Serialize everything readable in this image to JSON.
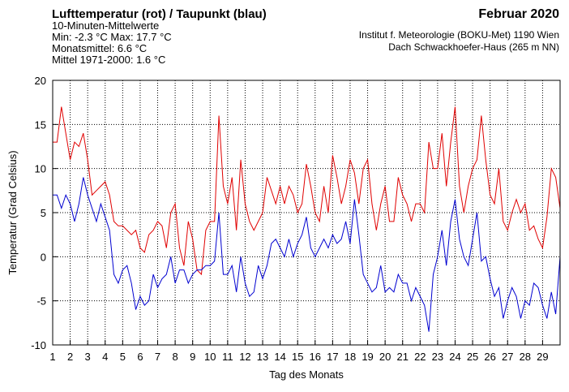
{
  "chart_data": {
    "type": "line",
    "title": "Lufttemperatur (rot) / Taupunkt (blau)",
    "subtitle": [
      "10-Minuten-Mittelwerte",
      "Min:  -2.3 °C   Max:  17.7 °C",
      "Monatsmittel:   6.6 °C",
      "Mittel 1971-2000:   1.6 °C"
    ],
    "title_right": "Februar 2020",
    "source": [
      "Institut f. Meteorologie (BOKU-Met) 1190 Wien",
      "Dach Schwackhoefer-Haus (265 m NN)"
    ],
    "xlabel": "Tag des Monats",
    "ylabel": "Temperatur (Grad Celsius)",
    "x": [
      1,
      1.25,
      1.5,
      1.75,
      2,
      2.25,
      2.5,
      2.75,
      3,
      3.25,
      3.5,
      3.75,
      4,
      4.25,
      4.5,
      4.75,
      5,
      5.25,
      5.5,
      5.75,
      6,
      6.25,
      6.5,
      6.75,
      7,
      7.25,
      7.5,
      7.75,
      8,
      8.25,
      8.5,
      8.75,
      9,
      9.25,
      9.5,
      9.75,
      10,
      10.25,
      10.5,
      10.75,
      11,
      11.25,
      11.5,
      11.75,
      12,
      12.25,
      12.5,
      12.75,
      13,
      13.25,
      13.5,
      13.75,
      14,
      14.25,
      14.5,
      14.75,
      15,
      15.25,
      15.5,
      15.75,
      16,
      16.25,
      16.5,
      16.75,
      17,
      17.25,
      17.5,
      17.75,
      18,
      18.25,
      18.5,
      18.75,
      19,
      19.25,
      19.5,
      19.75,
      20,
      20.25,
      20.5,
      20.75,
      21,
      21.25,
      21.5,
      21.75,
      22,
      22.25,
      22.5,
      22.75,
      23,
      23.25,
      23.5,
      23.75,
      24,
      24.25,
      24.5,
      24.75,
      25,
      25.25,
      25.5,
      25.75,
      26,
      26.25,
      26.5,
      26.75,
      27,
      27.25,
      27.5,
      27.75,
      28,
      28.25,
      28.5,
      28.75,
      29,
      29.25,
      29.5,
      29.75,
      30
    ],
    "series": [
      {
        "name": "Lufttemperatur",
        "color": "#e00000",
        "values": [
          13,
          13,
          17,
          14,
          11,
          13,
          12.5,
          14,
          11,
          7,
          7.5,
          8,
          8.5,
          7,
          4,
          3.5,
          3.5,
          3,
          2.5,
          3,
          1,
          0.5,
          2.5,
          3,
          4,
          3.5,
          1,
          5,
          6,
          1,
          -1,
          4,
          2,
          -1.5,
          -2,
          3,
          4,
          4,
          16,
          8,
          6,
          9,
          3,
          11,
          6,
          4,
          3,
          4,
          5,
          9,
          7.5,
          6,
          8,
          6,
          8,
          7,
          5,
          6,
          10.5,
          8,
          5,
          4,
          8,
          5,
          11.5,
          9,
          6,
          8,
          11,
          9.5,
          6,
          10,
          11,
          6,
          3,
          6,
          8,
          4,
          4,
          9,
          7,
          6,
          4,
          6,
          6,
          5,
          13,
          10,
          10,
          14,
          8,
          13,
          17,
          8,
          5,
          8,
          10,
          11,
          16,
          11,
          7,
          6,
          10,
          4,
          3,
          5,
          6.5,
          5,
          6,
          3,
          3.5,
          2,
          1,
          4.5,
          10,
          9,
          5.5
        ]
      },
      {
        "name": "Taupunkt",
        "color": "#0000d0",
        "values": [
          7,
          7,
          5.5,
          7,
          6,
          4,
          6,
          9,
          7,
          5.5,
          4,
          6,
          4.5,
          3,
          -2,
          -3,
          -1.5,
          -1,
          -3,
          -6,
          -4.5,
          -5.5,
          -5,
          -2,
          -3.5,
          -2.5,
          -2,
          0,
          -3,
          -1.5,
          -1.5,
          -3,
          -2,
          -1.5,
          -1.5,
          -1,
          -1,
          -0.5,
          5,
          -2,
          -2,
          -1,
          -4,
          0,
          -3,
          -4.5,
          -4,
          -1,
          -2.5,
          -1,
          1.5,
          2,
          1,
          0,
          2,
          0,
          1.5,
          2.5,
          4.5,
          1,
          0,
          1,
          2,
          1,
          2.5,
          1.5,
          2,
          4,
          1.5,
          6.5,
          2.5,
          -2,
          -3,
          -4,
          -3.5,
          -1,
          -4,
          -3.5,
          -4,
          -2,
          -3,
          -3,
          -5,
          -3.5,
          -4.5,
          -5.5,
          -8.5,
          -2,
          0,
          3,
          -1,
          4,
          6.5,
          2,
          0,
          -1,
          2,
          5,
          -0.5,
          0,
          -2.5,
          -4.5,
          -3.5,
          -7,
          -5,
          -3.5,
          -4.5,
          -7,
          -5,
          -5.5,
          -3,
          -3.5,
          -5.5,
          -7,
          -4,
          -6.5,
          0
        ]
      }
    ],
    "xlim": [
      1,
      30
    ],
    "xticks": [
      1,
      2,
      3,
      4,
      5,
      6,
      7,
      8,
      9,
      10,
      11,
      12,
      13,
      14,
      15,
      16,
      17,
      18,
      19,
      20,
      21,
      22,
      23,
      24,
      25,
      26,
      27,
      28,
      29
    ],
    "ylim": [
      -10,
      20
    ],
    "yticks": [
      -10,
      -5,
      0,
      5,
      10,
      15,
      20
    ],
    "grid": true
  }
}
